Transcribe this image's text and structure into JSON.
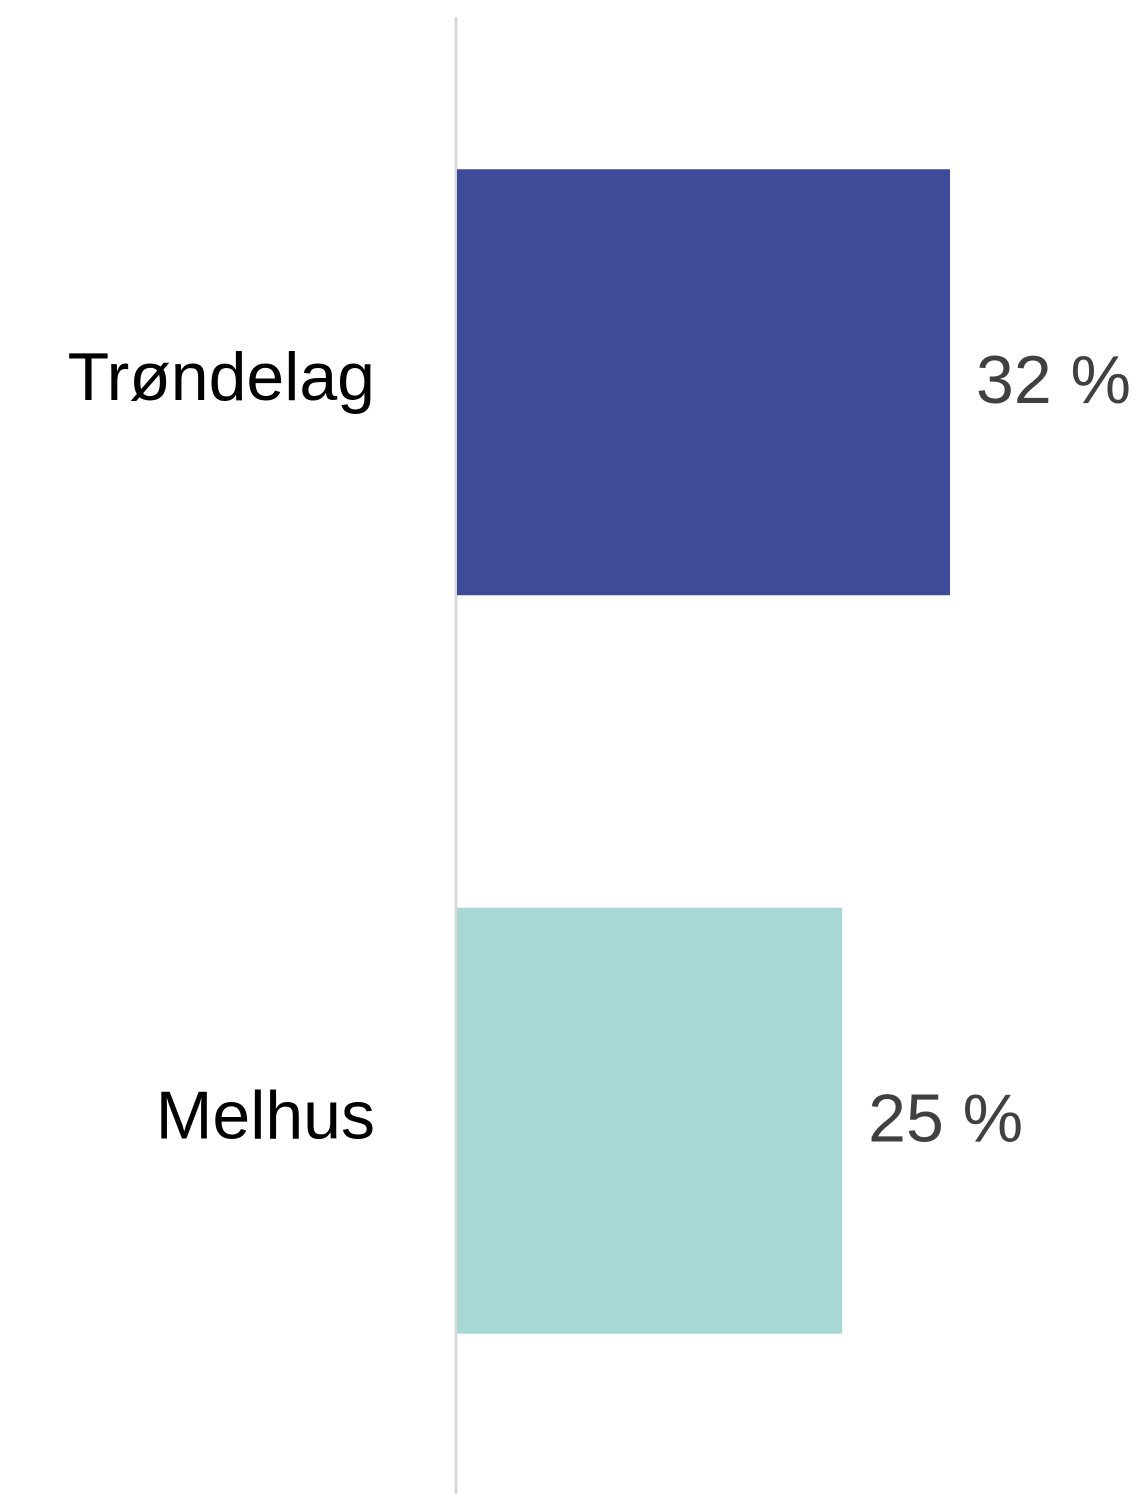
{
  "chart_data": {
    "type": "bar",
    "orientation": "horizontal",
    "categories": [
      "Trøndelag",
      "Melhus"
    ],
    "values": [
      32,
      25
    ],
    "value_labels": [
      "32 %",
      "25 %"
    ],
    "colors": [
      "#3d4b99",
      "#a8d8d4"
    ]
  }
}
